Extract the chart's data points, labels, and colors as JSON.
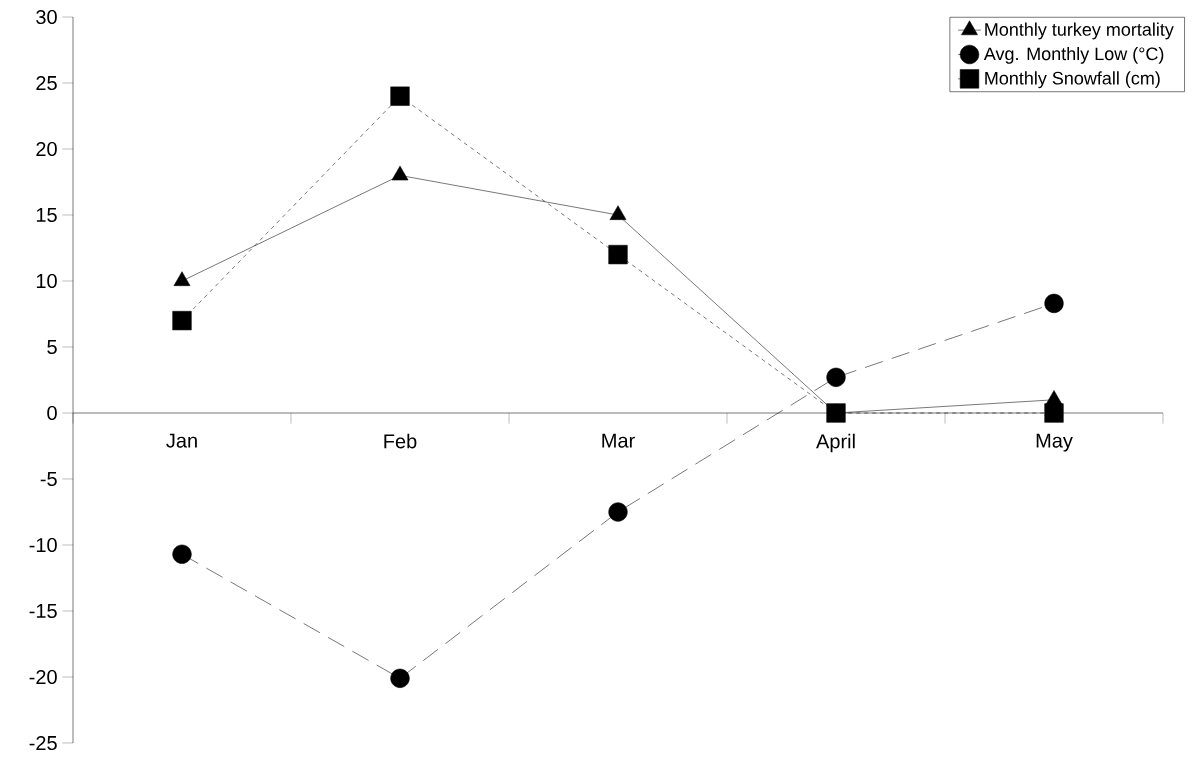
{
  "chart_data": {
    "type": "line",
    "categories": [
      "Jan",
      "Feb",
      "Mar",
      "April",
      "May"
    ],
    "series": [
      {
        "name": "Monthly turkey mortality",
        "color": "#000000",
        "marker": "triangle",
        "line_style": "solid",
        "values": [
          10,
          18,
          15,
          0,
          1
        ]
      },
      {
        "name": "Avg. Monthly Low  (°C)",
        "color": "#000000",
        "marker": "circle",
        "line_style": "dashed",
        "values": [
          -10.7,
          -20.1,
          -7.5,
          2.7,
          8.3
        ]
      },
      {
        "name": "Monthly Snowfall (cm)",
        "color": "#000000",
        "marker": "square",
        "line_style": "dotted",
        "values": [
          7,
          24,
          12,
          0,
          0
        ]
      }
    ],
    "ylim": [
      -25,
      30
    ],
    "yticks": [
      -25,
      -20,
      -15,
      -10,
      -5,
      0,
      5,
      10,
      15,
      20,
      25,
      30
    ],
    "grid": false,
    "legend": "top right"
  }
}
